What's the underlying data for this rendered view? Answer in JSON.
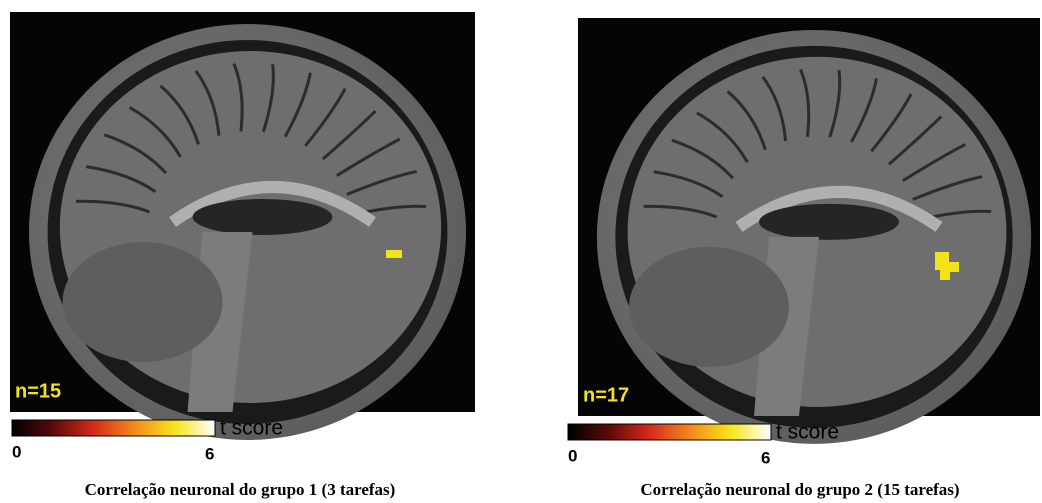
{
  "panels": [
    {
      "label": "n=15",
      "colorbar": {
        "min": "0",
        "max": "6",
        "unit": "t score"
      },
      "caption": "Correlação neuronal do grupo 1 (3 tarefas)"
    },
    {
      "label": "n=17",
      "colorbar": {
        "min": "0",
        "max": "6",
        "unit": "t score"
      },
      "caption": "Correlação neuronal do grupo 2 (15 tarefas)"
    }
  ]
}
